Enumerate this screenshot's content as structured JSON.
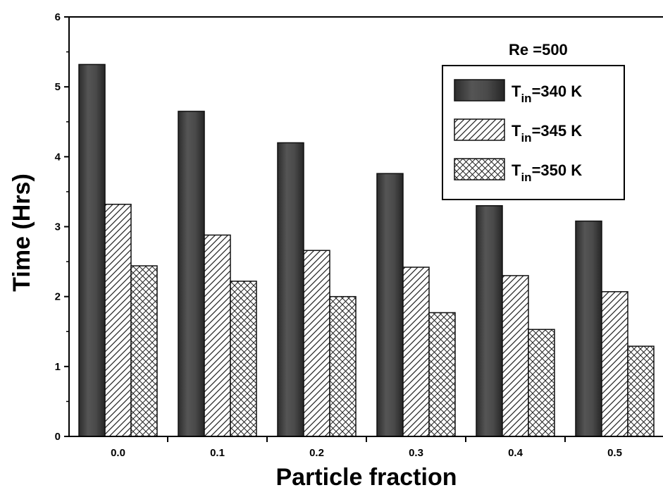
{
  "chart_data": {
    "type": "bar",
    "xlabel": "Particle fraction",
    "ylabel": "Time (Hrs)",
    "categories": [
      "0.0",
      "0.1",
      "0.2",
      "0.3",
      "0.4",
      "0.5"
    ],
    "ylim": [
      0,
      6
    ],
    "yticks": [
      "0",
      "1",
      "2",
      "3",
      "4",
      "5",
      "6"
    ],
    "annotation": "Re =500",
    "legend_position": "top-right",
    "grid": false,
    "series": [
      {
        "name": "T_in=340 K",
        "label_main": "T",
        "label_sub": "in",
        "label_rest": "=340 K",
        "fill": "solid-dark",
        "values": [
          5.32,
          4.65,
          4.2,
          3.76,
          3.3,
          3.08
        ]
      },
      {
        "name": "T_in=345 K",
        "label_main": "T",
        "label_sub": "in",
        "label_rest": "=345 K",
        "fill": "diagonal-hatch",
        "values": [
          3.32,
          2.88,
          2.66,
          2.42,
          2.3,
          2.07
        ]
      },
      {
        "name": "T_in=350 K",
        "label_main": "T",
        "label_sub": "in",
        "label_rest": "=350 K",
        "fill": "cross-hatch",
        "values": [
          2.44,
          2.22,
          2.0,
          1.77,
          1.53,
          1.29
        ]
      }
    ]
  }
}
